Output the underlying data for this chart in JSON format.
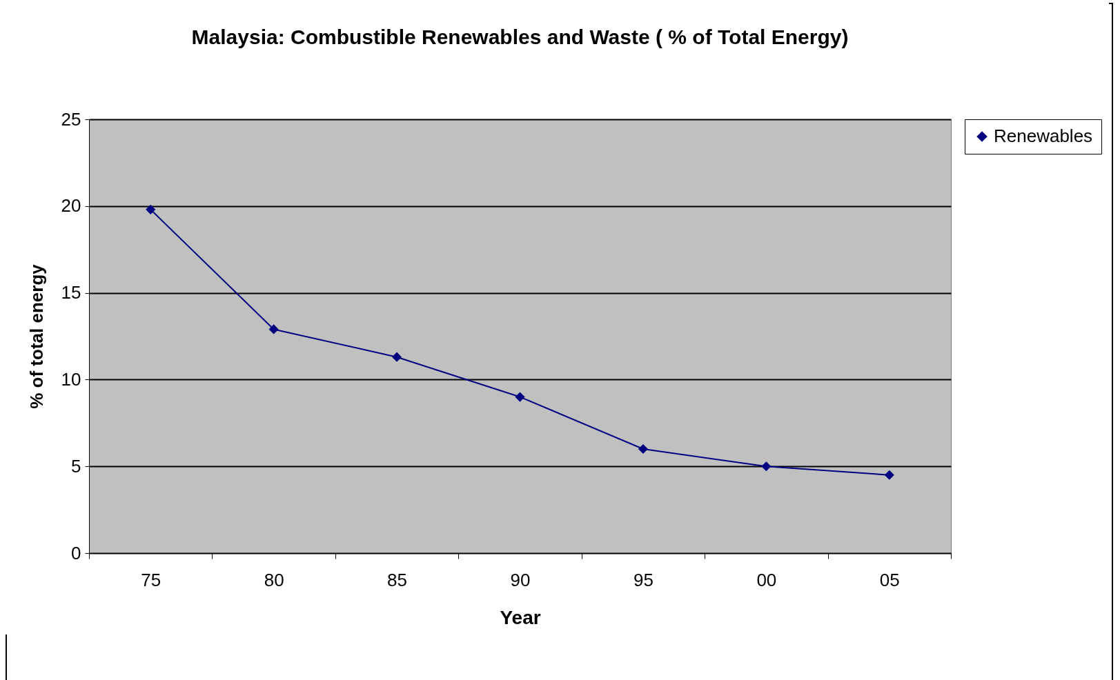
{
  "chart_data": {
    "type": "line",
    "title": "Malaysia: Combustible Renewables and Waste ( %  of Total Energy)",
    "xlabel": "Year",
    "ylabel": "% of total energy",
    "categories": [
      "75",
      "80",
      "85",
      "90",
      "95",
      "00",
      "05"
    ],
    "series": [
      {
        "name": "Renewables",
        "color": "#000080",
        "values": [
          19.8,
          12.9,
          11.3,
          9.0,
          6.0,
          5.0,
          4.5
        ]
      }
    ],
    "ylim": [
      0,
      25
    ],
    "yticks": [
      0,
      5,
      10,
      15,
      20,
      25
    ],
    "grid": "y",
    "legend": "right",
    "marker": "diamond",
    "line_style": "solid"
  }
}
